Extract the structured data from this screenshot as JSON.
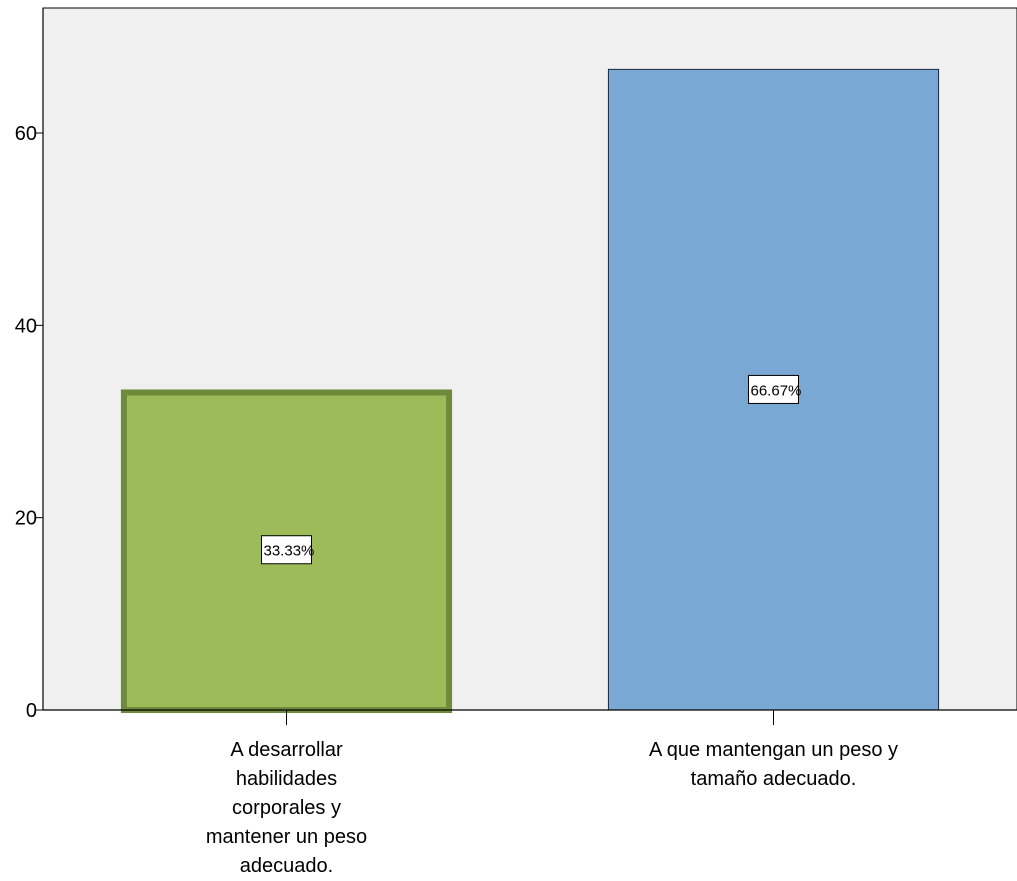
{
  "chart_data": {
    "type": "bar",
    "categories": [
      [
        "A desarrollar",
        "habilidades",
        "corporales y",
        "mantener un peso",
        "adecuado."
      ],
      [
        "A que mantengan un peso y",
        "tamaño adecuado."
      ]
    ],
    "values": [
      33.33,
      66.67
    ],
    "data_labels": [
      "33.33%",
      "66.67%"
    ],
    "colors": [
      "#9dbc59",
      "#7aa8d5"
    ],
    "borders": [
      "#6f8a3a",
      "#1a2b40"
    ],
    "ylim": [
      0,
      73
    ],
    "yticks": [
      0,
      20,
      40,
      60
    ],
    "xlabel": "",
    "ylabel": "",
    "title": "",
    "grid": false,
    "plot_background": "#f0f0f0"
  }
}
